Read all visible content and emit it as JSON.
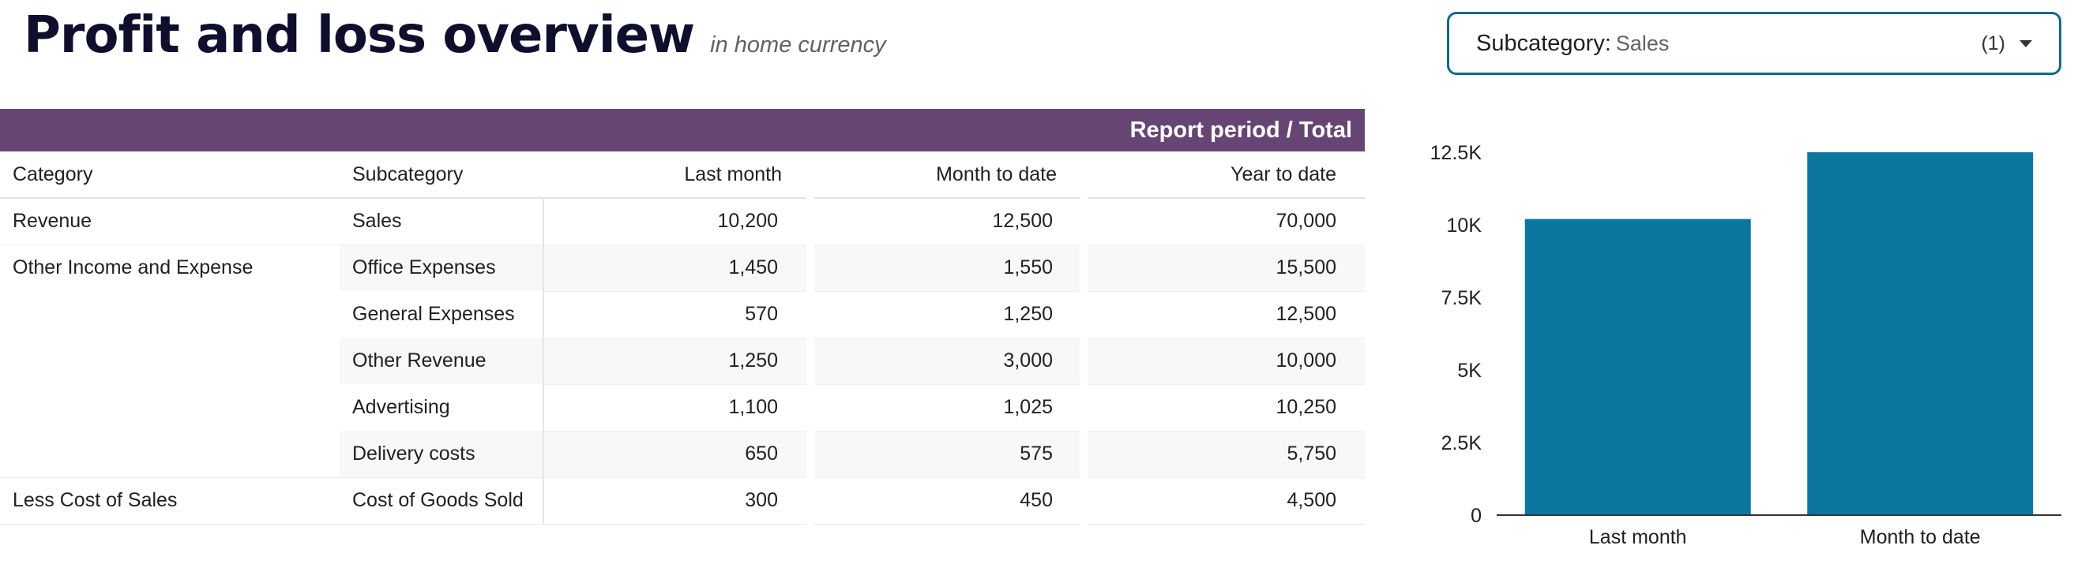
{
  "header": {
    "title": "Profit and loss overview",
    "subtitle": "in home currency"
  },
  "filter": {
    "label": "Subcategory",
    "colon": ":",
    "value": "Sales",
    "count": "(1)",
    "caret_icon": "caret-down-icon"
  },
  "table": {
    "period_header": "Report period / Total",
    "columns": [
      "Category",
      "Subcategory",
      "Last month",
      "Month to date",
      "Year to date"
    ],
    "rows": [
      {
        "category": "Revenue",
        "subcategory": "Sales",
        "last_month": "10,200",
        "month_to_date": "12,500",
        "year_to_date": "70,000"
      },
      {
        "category": "Other Income and Expense",
        "subcategory": "Office Expenses",
        "last_month": "1,450",
        "month_to_date": "1,550",
        "year_to_date": "15,500"
      },
      {
        "category": "",
        "subcategory": "General Expenses",
        "last_month": "570",
        "month_to_date": "1,250",
        "year_to_date": "12,500"
      },
      {
        "category": "",
        "subcategory": "Other Revenue",
        "last_month": "1,250",
        "month_to_date": "3,000",
        "year_to_date": "10,000"
      },
      {
        "category": "",
        "subcategory": "Advertising",
        "last_month": "1,100",
        "month_to_date": "1,025",
        "year_to_date": "10,250"
      },
      {
        "category": "",
        "subcategory": "Delivery costs",
        "last_month": "650",
        "month_to_date": "575",
        "year_to_date": "5,750"
      },
      {
        "category": "Less Cost of Sales",
        "subcategory": "Cost of Goods Sold",
        "last_month": "300",
        "month_to_date": "450",
        "year_to_date": "4,500"
      }
    ]
  },
  "chart_data": {
    "type": "bar",
    "categories": [
      "Last month",
      "Month to date"
    ],
    "values": [
      10200,
      12500
    ],
    "ylim": [
      0,
      12500
    ],
    "yticks": [
      0,
      2500,
      5000,
      7500,
      10000,
      12500
    ],
    "ytick_labels": [
      "0",
      "2.5K",
      "5K",
      "7.5K",
      "10K",
      "12.5K"
    ],
    "bar_color": "#0b769e",
    "grid": false,
    "title": "",
    "xlabel": "",
    "ylabel": ""
  },
  "colors": {
    "header_bar": "#664574",
    "filter_border": "#0b6b89",
    "bar": "#0b769e"
  }
}
